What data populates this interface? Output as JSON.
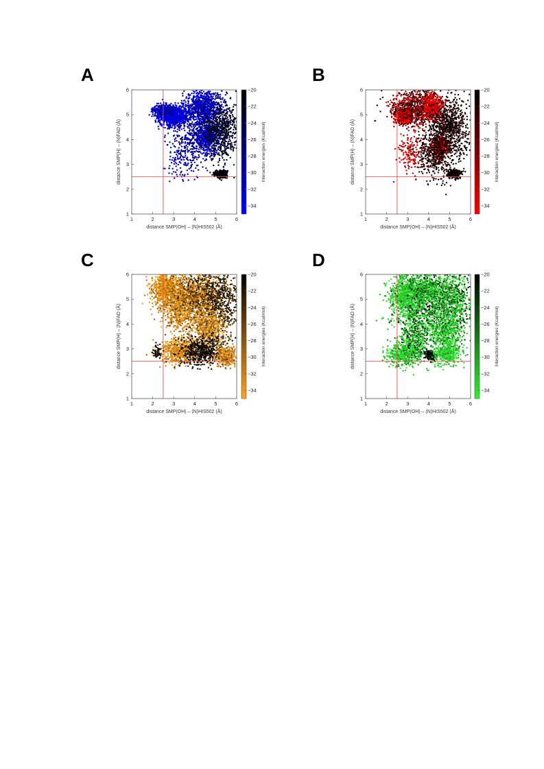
{
  "chart_data": [
    {
      "panel": "A",
      "type": "scatter",
      "xlabel": "distance SMP(OH) – (N)HIS502 (Å)",
      "ylabel": "distance SMP(H) – (N)FAD (Å)",
      "colorbar_label": "Interaction energies (Kcal/mol)",
      "xlim": [
        1,
        6
      ],
      "ylim": [
        1,
        6
      ],
      "xticks": [
        1,
        2,
        3,
        4,
        5,
        6
      ],
      "yticks": [
        1,
        2,
        3,
        4,
        5,
        6
      ],
      "colorbar_ticks": [
        -20,
        -22,
        -24,
        -26,
        -28,
        -30,
        -32,
        -34
      ],
      "colorbar_range": [
        -35,
        -20
      ],
      "color_low": "#0000ff",
      "color_high": "#000000",
      "reference_lines": {
        "x": 2.5,
        "y": 2.5,
        "color": "#e05050"
      },
      "clusters": [
        {
          "x": 3.0,
          "y": 4.95,
          "sx": 0.35,
          "sy": 0.22,
          "n": 900,
          "energy": -33,
          "spread": 2
        },
        {
          "x": 2.5,
          "y": 5.15,
          "sx": 0.25,
          "sy": 0.12,
          "n": 350,
          "energy": -31,
          "spread": 3
        },
        {
          "x": 4.4,
          "y": 5.3,
          "sx": 0.45,
          "sy": 0.35,
          "n": 900,
          "energy": -32,
          "spread": 3
        },
        {
          "x": 4.6,
          "y": 4.1,
          "sx": 0.3,
          "sy": 0.3,
          "n": 500,
          "energy": -33,
          "spread": 2
        },
        {
          "x": 5.2,
          "y": 4.4,
          "sx": 0.45,
          "sy": 0.6,
          "n": 700,
          "energy": -22,
          "spread": 2
        },
        {
          "x": 3.8,
          "y": 3.9,
          "sx": 0.5,
          "sy": 0.5,
          "n": 300,
          "energy": -29,
          "spread": 5
        },
        {
          "x": 5.25,
          "y": 2.6,
          "sx": 0.15,
          "sy": 0.08,
          "n": 260,
          "energy": -20.5,
          "spread": 1
        },
        {
          "x": 3.4,
          "y": 3.0,
          "sx": 0.4,
          "sy": 0.35,
          "n": 70,
          "energy": -32,
          "spread": 3
        }
      ]
    },
    {
      "panel": "B",
      "type": "scatter",
      "xlabel": "distance SMP(OH) – (N)HIS502 (Å)",
      "ylabel": "distance SMP(H) – (N)FAD (Å)",
      "colorbar_label": "Interaction energies (Kcal/mol)",
      "xlim": [
        1,
        6
      ],
      "ylim": [
        1,
        6
      ],
      "xticks": [
        1,
        2,
        3,
        4,
        5,
        6
      ],
      "yticks": [
        1,
        2,
        3,
        4,
        5,
        6
      ],
      "colorbar_ticks": [
        -20,
        -22,
        -24,
        -26,
        -28,
        -30,
        -32,
        -34
      ],
      "colorbar_range": [
        -35,
        -20
      ],
      "color_low": "#ff0000",
      "color_high": "#000000",
      "reference_lines": {
        "x": 2.5,
        "y": 2.5,
        "color": "#e05050"
      },
      "clusters": [
        {
          "x": 2.8,
          "y": 4.95,
          "sx": 0.2,
          "sy": 0.15,
          "n": 450,
          "energy": -33.5,
          "spread": 1.5
        },
        {
          "x": 3.4,
          "y": 5.3,
          "sx": 0.6,
          "sy": 0.35,
          "n": 900,
          "energy": -26,
          "spread": 6
        },
        {
          "x": 4.2,
          "y": 5.3,
          "sx": 0.25,
          "sy": 0.25,
          "n": 450,
          "energy": -33,
          "spread": 2
        },
        {
          "x": 4.55,
          "y": 3.7,
          "sx": 0.18,
          "sy": 0.2,
          "n": 350,
          "energy": -33.5,
          "spread": 1.5
        },
        {
          "x": 5.0,
          "y": 4.5,
          "sx": 0.5,
          "sy": 0.6,
          "n": 800,
          "energy": -21,
          "spread": 1.5
        },
        {
          "x": 4.3,
          "y": 3.5,
          "sx": 0.45,
          "sy": 0.55,
          "n": 500,
          "energy": -22,
          "spread": 2
        },
        {
          "x": 3.1,
          "y": 3.4,
          "sx": 0.3,
          "sy": 0.4,
          "n": 130,
          "energy": -32,
          "spread": 3
        },
        {
          "x": 5.25,
          "y": 2.62,
          "sx": 0.15,
          "sy": 0.08,
          "n": 280,
          "energy": -20.5,
          "spread": 1
        }
      ]
    },
    {
      "panel": "C",
      "type": "scatter",
      "xlabel": "distance SMP(OH) – (N)HIS502 (Å)",
      "ylabel": "distance SMP(H) – (N)FAD (Å)",
      "colorbar_label": "Interaction energies (Kcal/mol)",
      "xlim": [
        1,
        6
      ],
      "ylim": [
        1,
        6
      ],
      "xticks": [
        1,
        2,
        3,
        4,
        5,
        6
      ],
      "yticks": [
        1,
        2,
        3,
        4,
        5,
        6
      ],
      "colorbar_ticks": [
        -20,
        -22,
        -24,
        -26,
        -28,
        -30,
        -32,
        -34
      ],
      "colorbar_range": [
        -35,
        -20
      ],
      "color_low": "#ffa31a",
      "color_high": "#000000",
      "reference_lines": {
        "x": 2.5,
        "y": 2.5,
        "color": "#e05050"
      },
      "clusters": [
        {
          "x": 2.6,
          "y": 5.4,
          "sx": 0.35,
          "sy": 0.35,
          "n": 700,
          "energy": -33,
          "spread": 2
        },
        {
          "x": 3.3,
          "y": 4.8,
          "sx": 0.4,
          "sy": 0.6,
          "n": 800,
          "energy": -32,
          "spread": 3
        },
        {
          "x": 4.2,
          "y": 5.2,
          "sx": 0.5,
          "sy": 0.45,
          "n": 800,
          "energy": -30,
          "spread": 5
        },
        {
          "x": 5.2,
          "y": 5.0,
          "sx": 0.5,
          "sy": 0.7,
          "n": 700,
          "energy": -23,
          "spread": 3
        },
        {
          "x": 4.6,
          "y": 3.8,
          "sx": 0.4,
          "sy": 0.45,
          "n": 600,
          "energy": -32,
          "spread": 3
        },
        {
          "x": 3.3,
          "y": 2.9,
          "sx": 0.45,
          "sy": 0.25,
          "n": 600,
          "energy": -33,
          "spread": 2
        },
        {
          "x": 4.3,
          "y": 2.9,
          "sx": 0.5,
          "sy": 0.3,
          "n": 500,
          "energy": -21,
          "spread": 2
        },
        {
          "x": 5.5,
          "y": 2.7,
          "sx": 0.25,
          "sy": 0.2,
          "n": 300,
          "energy": -32,
          "spread": 3
        },
        {
          "x": 2.2,
          "y": 2.9,
          "sx": 0.12,
          "sy": 0.15,
          "n": 60,
          "energy": -21,
          "spread": 2
        }
      ]
    },
    {
      "panel": "D",
      "type": "scatter",
      "xlabel": "distance SMP(OH) – (N)HIS502 (Å)",
      "ylabel": "distance SMP(H) – (N)FAD (Å)",
      "colorbar_label": "Interaction energies (Kcal/mol)",
      "xlim": [
        1,
        6
      ],
      "ylim": [
        1,
        6
      ],
      "xticks": [
        1,
        2,
        3,
        4,
        5,
        6
      ],
      "yticks": [
        1,
        2,
        3,
        4,
        5,
        6
      ],
      "colorbar_ticks": [
        -20,
        -22,
        -24,
        -26,
        -28,
        -30,
        -32,
        -34
      ],
      "colorbar_range": [
        -35,
        -20
      ],
      "color_low": "#33ee33",
      "color_high": "#000000",
      "reference_lines": {
        "x": 2.5,
        "y": 2.5,
        "color": "#e05050"
      },
      "clusters": [
        {
          "x": 2.9,
          "y": 5.2,
          "sx": 0.4,
          "sy": 0.4,
          "n": 800,
          "energy": -33,
          "spread": 2
        },
        {
          "x": 3.9,
          "y": 5.4,
          "sx": 0.5,
          "sy": 0.35,
          "n": 700,
          "energy": -31,
          "spread": 4
        },
        {
          "x": 5.1,
          "y": 5.0,
          "sx": 0.5,
          "sy": 0.6,
          "n": 800,
          "energy": -30,
          "spread": 6
        },
        {
          "x": 3.6,
          "y": 4.3,
          "sx": 0.6,
          "sy": 0.5,
          "n": 500,
          "energy": -29,
          "spread": 6
        },
        {
          "x": 4.8,
          "y": 3.6,
          "sx": 0.45,
          "sy": 0.5,
          "n": 600,
          "energy": -32,
          "spread": 3
        },
        {
          "x": 2.8,
          "y": 2.8,
          "sx": 0.4,
          "sy": 0.25,
          "n": 450,
          "energy": -33,
          "spread": 2
        },
        {
          "x": 3.3,
          "y": 3.3,
          "sx": 0.3,
          "sy": 0.4,
          "n": 300,
          "energy": -30,
          "spread": 5
        },
        {
          "x": 4.1,
          "y": 2.75,
          "sx": 0.15,
          "sy": 0.1,
          "n": 150,
          "energy": -21,
          "spread": 1
        },
        {
          "x": 4.9,
          "y": 2.8,
          "sx": 0.3,
          "sy": 0.2,
          "n": 300,
          "energy": -33,
          "spread": 2
        }
      ]
    }
  ]
}
